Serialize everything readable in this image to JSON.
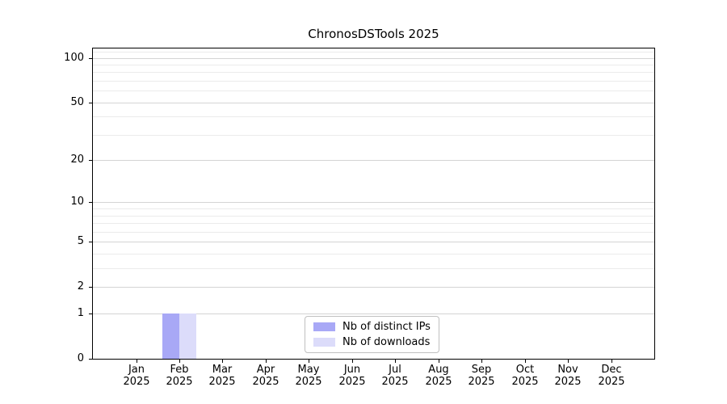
{
  "chart_data": {
    "type": "bar",
    "title": "ChronosDSTools 2025",
    "categories": [
      "Jan",
      "Feb",
      "Mar",
      "Apr",
      "May",
      "Jun",
      "Jul",
      "Aug",
      "Sep",
      "Oct",
      "Nov",
      "Dec"
    ],
    "category_year": "2025",
    "series": [
      {
        "name": "Nb of distinct IPs",
        "color": "#a8a8f6",
        "values": [
          0,
          1,
          0,
          0,
          0,
          0,
          0,
          0,
          0,
          0,
          0,
          0
        ]
      },
      {
        "name": "Nb of downloads",
        "color": "#dcdcfa",
        "values": [
          0,
          1,
          0,
          0,
          0,
          0,
          0,
          0,
          0,
          0,
          0,
          0
        ]
      }
    ],
    "yscale": "log1p",
    "ylim": [
      0,
      117
    ],
    "y_ticks": [
      0,
      1,
      2,
      5,
      10,
      20,
      50,
      100
    ],
    "y_minor_gridlines": [
      3,
      4,
      6,
      7,
      8,
      9,
      30,
      40,
      60,
      70,
      80,
      90,
      110
    ],
    "grid": true,
    "legend_position": "lower center",
    "colors": {
      "axis": "#000000",
      "grid_major": "#d4d4d4",
      "grid_minor": "#ebebeb",
      "background": "#ffffff",
      "legend_border": "#c0c0c0",
      "text": "#000000"
    }
  }
}
